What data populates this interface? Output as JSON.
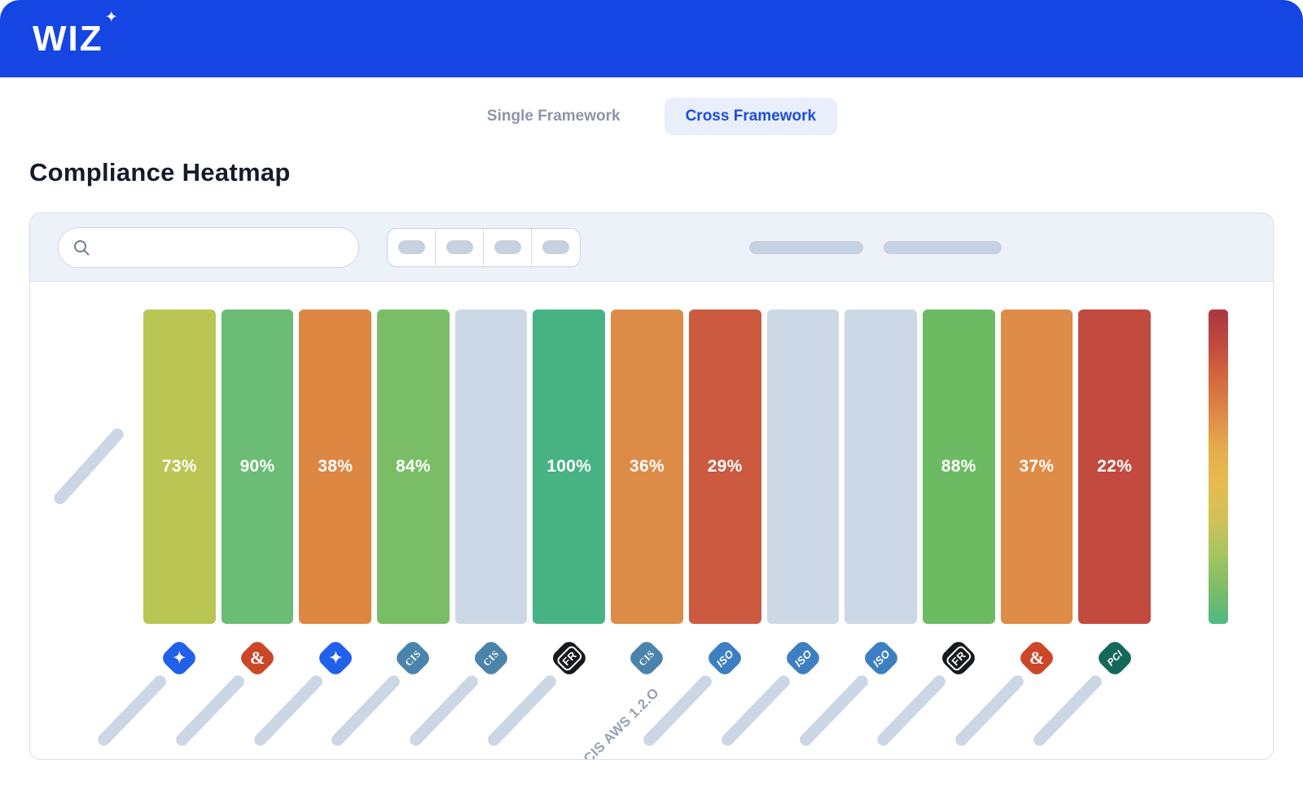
{
  "brand": {
    "logo_text": "WIZ",
    "sparkle": "✦",
    "header_bg": "#1546e3"
  },
  "view_toggle": {
    "options": [
      {
        "label": "Single Framework",
        "active": false
      },
      {
        "label": "Cross Framework",
        "active": true
      }
    ]
  },
  "page": {
    "title": "Compliance Heatmap"
  },
  "toolbar": {
    "search": {
      "placeholder": "",
      "value": ""
    },
    "filter_segments": [
      "",
      "",
      "",
      ""
    ],
    "right_placeholders": [
      "",
      ""
    ]
  },
  "icon_defs": {
    "wiz": {
      "glyph": "✦",
      "bg": "#2160ea",
      "upright": true,
      "class": "g-star"
    },
    "ampersand": {
      "glyph": "&",
      "bg": "#cc4628",
      "upright": true,
      "class": "g-amp"
    },
    "cis": {
      "glyph": "CIS",
      "bg": "#4a84ad",
      "upright": false,
      "class": "g-cis"
    },
    "fedramp": {
      "glyph": "FR",
      "bg": "#17191e",
      "upright": false,
      "class": "g-fr"
    },
    "iso": {
      "glyph": "ISO",
      "bg": "#3e7fc1",
      "upright": false,
      "class": "g-iso"
    },
    "pci": {
      "glyph": "PCI",
      "bg": "#15695a",
      "upright": false,
      "class": "g-pci"
    }
  },
  "chart_data": {
    "type": "heatmap",
    "title": "Compliance Heatmap",
    "value_suffix": "%",
    "empty_cell_color": "#ccd8e5",
    "columns": [
      {
        "value": 73,
        "color": "#bac654",
        "icon": "wiz",
        "label": null
      },
      {
        "value": 90,
        "color": "#6bbc74",
        "icon": "ampersand",
        "label": null
      },
      {
        "value": 38,
        "color": "#dd8742",
        "icon": "wiz",
        "label": null
      },
      {
        "value": 84,
        "color": "#79be66",
        "icon": "cis",
        "label": null
      },
      {
        "value": null,
        "color": "#ccd8e5",
        "icon": "cis",
        "label": null
      },
      {
        "value": 100,
        "color": "#47b384",
        "icon": "fedramp",
        "label": null
      },
      {
        "value": 36,
        "color": "#dd8c48",
        "icon": "cis",
        "label": "CIS AWS 1.2.O"
      },
      {
        "value": 29,
        "color": "#cb5a41",
        "icon": "iso",
        "label": null
      },
      {
        "value": null,
        "color": "#ccd8e5",
        "icon": "iso",
        "label": null
      },
      {
        "value": null,
        "color": "#ccd8e5",
        "icon": "iso",
        "label": null
      },
      {
        "value": 88,
        "color": "#6cbb63",
        "icon": "fedramp",
        "label": null
      },
      {
        "value": 37,
        "color": "#de8c47",
        "icon": "ampersand",
        "label": null
      },
      {
        "value": 22,
        "color": "#c34a3f",
        "icon": "pci",
        "label": null
      }
    ],
    "legend": {
      "type": "gradient-scale",
      "orientation": "vertical",
      "stops_top_to_bottom": [
        "#a93642",
        "#c14a3d",
        "#d4693f",
        "#dd8a47",
        "#e5ad4b",
        "#e8bb4e",
        "#cfc258",
        "#a6c55f",
        "#7dbd67",
        "#4eb983"
      ]
    }
  }
}
